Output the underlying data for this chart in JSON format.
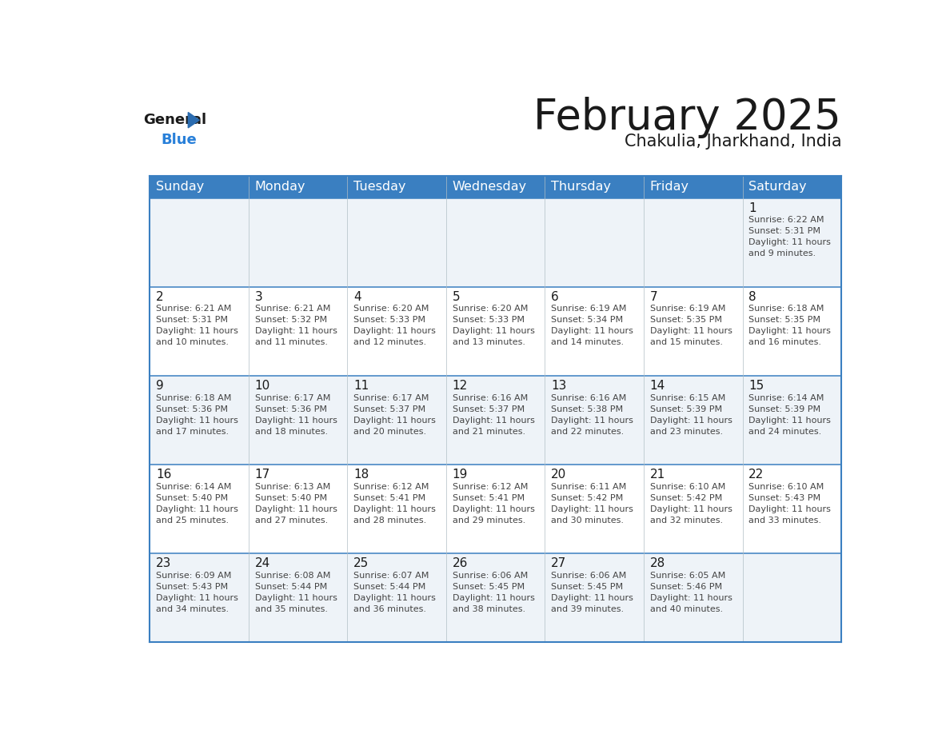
{
  "title": "February 2025",
  "subtitle": "Chakulia, Jharkhand, India",
  "header_bg": "#3a7fc1",
  "header_text": "#ffffff",
  "border_color": "#3a7fc1",
  "cell_bg_odd": "#eef3f8",
  "cell_bg_even": "#ffffff",
  "days_of_week": [
    "Sunday",
    "Monday",
    "Tuesday",
    "Wednesday",
    "Thursday",
    "Friday",
    "Saturday"
  ],
  "weeks": [
    [
      {
        "day": null,
        "info": null
      },
      {
        "day": null,
        "info": null
      },
      {
        "day": null,
        "info": null
      },
      {
        "day": null,
        "info": null
      },
      {
        "day": null,
        "info": null
      },
      {
        "day": null,
        "info": null
      },
      {
        "day": 1,
        "info": "Sunrise: 6:22 AM\nSunset: 5:31 PM\nDaylight: 11 hours\nand 9 minutes."
      }
    ],
    [
      {
        "day": 2,
        "info": "Sunrise: 6:21 AM\nSunset: 5:31 PM\nDaylight: 11 hours\nand 10 minutes."
      },
      {
        "day": 3,
        "info": "Sunrise: 6:21 AM\nSunset: 5:32 PM\nDaylight: 11 hours\nand 11 minutes."
      },
      {
        "day": 4,
        "info": "Sunrise: 6:20 AM\nSunset: 5:33 PM\nDaylight: 11 hours\nand 12 minutes."
      },
      {
        "day": 5,
        "info": "Sunrise: 6:20 AM\nSunset: 5:33 PM\nDaylight: 11 hours\nand 13 minutes."
      },
      {
        "day": 6,
        "info": "Sunrise: 6:19 AM\nSunset: 5:34 PM\nDaylight: 11 hours\nand 14 minutes."
      },
      {
        "day": 7,
        "info": "Sunrise: 6:19 AM\nSunset: 5:35 PM\nDaylight: 11 hours\nand 15 minutes."
      },
      {
        "day": 8,
        "info": "Sunrise: 6:18 AM\nSunset: 5:35 PM\nDaylight: 11 hours\nand 16 minutes."
      }
    ],
    [
      {
        "day": 9,
        "info": "Sunrise: 6:18 AM\nSunset: 5:36 PM\nDaylight: 11 hours\nand 17 minutes."
      },
      {
        "day": 10,
        "info": "Sunrise: 6:17 AM\nSunset: 5:36 PM\nDaylight: 11 hours\nand 18 minutes."
      },
      {
        "day": 11,
        "info": "Sunrise: 6:17 AM\nSunset: 5:37 PM\nDaylight: 11 hours\nand 20 minutes."
      },
      {
        "day": 12,
        "info": "Sunrise: 6:16 AM\nSunset: 5:37 PM\nDaylight: 11 hours\nand 21 minutes."
      },
      {
        "day": 13,
        "info": "Sunrise: 6:16 AM\nSunset: 5:38 PM\nDaylight: 11 hours\nand 22 minutes."
      },
      {
        "day": 14,
        "info": "Sunrise: 6:15 AM\nSunset: 5:39 PM\nDaylight: 11 hours\nand 23 minutes."
      },
      {
        "day": 15,
        "info": "Sunrise: 6:14 AM\nSunset: 5:39 PM\nDaylight: 11 hours\nand 24 minutes."
      }
    ],
    [
      {
        "day": 16,
        "info": "Sunrise: 6:14 AM\nSunset: 5:40 PM\nDaylight: 11 hours\nand 25 minutes."
      },
      {
        "day": 17,
        "info": "Sunrise: 6:13 AM\nSunset: 5:40 PM\nDaylight: 11 hours\nand 27 minutes."
      },
      {
        "day": 18,
        "info": "Sunrise: 6:12 AM\nSunset: 5:41 PM\nDaylight: 11 hours\nand 28 minutes."
      },
      {
        "day": 19,
        "info": "Sunrise: 6:12 AM\nSunset: 5:41 PM\nDaylight: 11 hours\nand 29 minutes."
      },
      {
        "day": 20,
        "info": "Sunrise: 6:11 AM\nSunset: 5:42 PM\nDaylight: 11 hours\nand 30 minutes."
      },
      {
        "day": 21,
        "info": "Sunrise: 6:10 AM\nSunset: 5:42 PM\nDaylight: 11 hours\nand 32 minutes."
      },
      {
        "day": 22,
        "info": "Sunrise: 6:10 AM\nSunset: 5:43 PM\nDaylight: 11 hours\nand 33 minutes."
      }
    ],
    [
      {
        "day": 23,
        "info": "Sunrise: 6:09 AM\nSunset: 5:43 PM\nDaylight: 11 hours\nand 34 minutes."
      },
      {
        "day": 24,
        "info": "Sunrise: 6:08 AM\nSunset: 5:44 PM\nDaylight: 11 hours\nand 35 minutes."
      },
      {
        "day": 25,
        "info": "Sunrise: 6:07 AM\nSunset: 5:44 PM\nDaylight: 11 hours\nand 36 minutes."
      },
      {
        "day": 26,
        "info": "Sunrise: 6:06 AM\nSunset: 5:45 PM\nDaylight: 11 hours\nand 38 minutes."
      },
      {
        "day": 27,
        "info": "Sunrise: 6:06 AM\nSunset: 5:45 PM\nDaylight: 11 hours\nand 39 minutes."
      },
      {
        "day": 28,
        "info": "Sunrise: 6:05 AM\nSunset: 5:46 PM\nDaylight: 11 hours\nand 40 minutes."
      },
      {
        "day": null,
        "info": null
      }
    ]
  ],
  "logo_triangle_color": "#2b6cb0",
  "text_color_dark": "#1a1a1a",
  "text_color_info": "#444444",
  "title_fontsize": 38,
  "subtitle_fontsize": 15,
  "header_fontsize": 11.5,
  "day_num_fontsize": 11,
  "info_fontsize": 8.0
}
